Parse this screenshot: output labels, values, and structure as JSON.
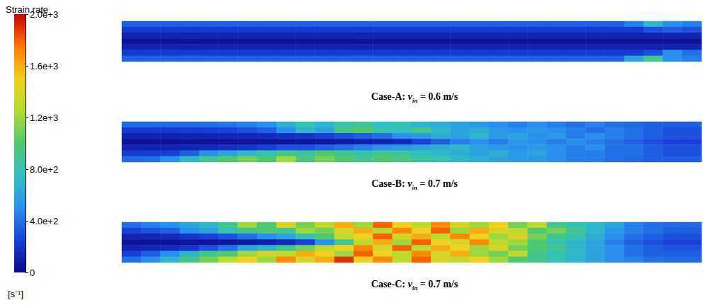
{
  "chart_data": {
    "type": "heatmap",
    "tick_labels": false,
    "colorbar": {
      "title": "Strain rate",
      "unit": "[s⁻¹]",
      "range": [
        0,
        2000
      ],
      "ticks": [
        0,
        {
          "value": 400,
          "label": "4.0e+2"
        },
        {
          "value": 800,
          "label": "8.0e+2"
        },
        {
          "value": 1200,
          "label": "1.2e+3"
        },
        {
          "value": 1600,
          "label": "1.6e+3"
        },
        {
          "value": 2000,
          "label": "2.0e+3"
        }
      ]
    },
    "panels": [
      {
        "caption": {
          "prefix": "Case-A:",
          "symbol": "v",
          "subscript": "in",
          "suffix": "= 0.6 m/s"
        },
        "cells": [
          [
            350,
            350,
            350,
            350,
            350,
            350,
            350,
            350,
            350,
            350,
            350,
            350,
            350,
            350,
            350,
            350,
            350,
            350,
            350,
            350,
            350,
            350,
            350,
            350,
            350,
            350,
            450,
            700,
            500,
            450
          ],
          [
            220,
            220,
            220,
            220,
            220,
            220,
            220,
            220,
            220,
            220,
            220,
            220,
            220,
            220,
            220,
            220,
            220,
            220,
            220,
            220,
            220,
            220,
            220,
            220,
            220,
            220,
            220,
            300,
            350,
            300
          ],
          [
            120,
            120,
            120,
            120,
            120,
            120,
            120,
            120,
            120,
            120,
            120,
            120,
            120,
            120,
            120,
            120,
            120,
            120,
            120,
            120,
            120,
            120,
            120,
            120,
            120,
            120,
            120,
            120,
            120,
            120
          ],
          [
            40,
            40,
            40,
            40,
            40,
            40,
            40,
            40,
            40,
            40,
            40,
            40,
            40,
            40,
            40,
            40,
            40,
            40,
            40,
            40,
            40,
            40,
            40,
            40,
            40,
            40,
            40,
            40,
            40,
            40
          ],
          [
            120,
            120,
            120,
            120,
            120,
            120,
            120,
            120,
            120,
            120,
            120,
            120,
            120,
            120,
            120,
            120,
            120,
            120,
            120,
            120,
            120,
            120,
            120,
            120,
            120,
            120,
            120,
            120,
            120,
            120
          ],
          [
            220,
            220,
            220,
            220,
            220,
            220,
            220,
            220,
            220,
            220,
            220,
            220,
            220,
            220,
            220,
            220,
            220,
            220,
            220,
            220,
            220,
            220,
            220,
            220,
            220,
            220,
            220,
            300,
            500,
            400
          ],
          [
            350,
            350,
            350,
            350,
            350,
            350,
            350,
            350,
            350,
            350,
            350,
            350,
            350,
            350,
            350,
            350,
            350,
            350,
            350,
            350,
            350,
            350,
            350,
            350,
            350,
            350,
            600,
            900,
            500,
            450
          ]
        ]
      },
      {
        "caption": {
          "prefix": "Case-B:",
          "symbol": "v",
          "subscript": "in",
          "suffix": "= 0.7 m/s"
        },
        "cells": [
          [
            380,
            380,
            380,
            380,
            400,
            420,
            450,
            500,
            650,
            800,
            700,
            850,
            900,
            750,
            800,
            700,
            650,
            600,
            550,
            500,
            450,
            500,
            450,
            400,
            450,
            400,
            380,
            350,
            350,
            350
          ],
          [
            220,
            220,
            220,
            230,
            250,
            260,
            300,
            350,
            500,
            700,
            600,
            900,
            1000,
            800,
            750,
            900,
            700,
            600,
            650,
            550,
            500,
            550,
            500,
            450,
            400,
            450,
            400,
            350,
            300,
            300
          ],
          [
            120,
            120,
            120,
            120,
            120,
            130,
            130,
            150,
            180,
            200,
            250,
            300,
            350,
            400,
            500,
            550,
            650,
            600,
            700,
            550,
            600,
            500,
            550,
            450,
            500,
            450,
            400,
            350,
            300,
            300
          ],
          [
            40,
            40,
            40,
            40,
            40,
            40,
            50,
            50,
            60,
            60,
            70,
            80,
            100,
            120,
            150,
            250,
            350,
            450,
            500,
            450,
            550,
            500,
            450,
            500,
            450,
            400,
            350,
            300,
            250,
            250
          ],
          [
            120,
            120,
            120,
            130,
            150,
            180,
            200,
            250,
            300,
            300,
            350,
            400,
            450,
            500,
            550,
            600,
            650,
            700,
            600,
            550,
            500,
            550,
            500,
            450,
            500,
            400,
            400,
            350,
            300,
            300
          ],
          [
            220,
            230,
            250,
            350,
            500,
            600,
            700,
            800,
            900,
            850,
            1000,
            900,
            800,
            900,
            850,
            750,
            700,
            650,
            600,
            650,
            550,
            600,
            500,
            450,
            450,
            400,
            400,
            350,
            300,
            300
          ],
          [
            380,
            400,
            500,
            700,
            900,
            1000,
            1100,
            1000,
            1200,
            950,
            1100,
            1000,
            900,
            1000,
            950,
            850,
            800,
            700,
            650,
            600,
            550,
            550,
            500,
            450,
            450,
            400,
            380,
            350,
            350,
            350
          ]
        ]
      },
      {
        "caption": {
          "prefix": "Case-C:",
          "symbol": "v",
          "subscript": "in",
          "suffix": "= 0.7 m/s"
        },
        "cells": [
          [
            400,
            450,
            500,
            600,
            700,
            900,
            1200,
            1000,
            1400,
            1100,
            1300,
            1600,
            1200,
            1800,
            1500,
            1300,
            1700,
            1400,
            1200,
            1500,
            1100,
            1300,
            900,
            800,
            700,
            600,
            450,
            400,
            380,
            380
          ],
          [
            250,
            300,
            350,
            500,
            600,
            800,
            900,
            1000,
            900,
            1200,
            1100,
            1400,
            1600,
            1300,
            1700,
            1500,
            1800,
            1200,
            1600,
            1400,
            1300,
            1000,
            1100,
            900,
            700,
            550,
            450,
            400,
            350,
            350
          ],
          [
            120,
            130,
            150,
            200,
            250,
            300,
            400,
            500,
            600,
            800,
            1000,
            1300,
            1500,
            1800,
            1400,
            1600,
            1300,
            1700,
            1500,
            1200,
            1400,
            1100,
            900,
            800,
            650,
            500,
            400,
            350,
            300,
            300
          ],
          [
            40,
            40,
            40,
            50,
            50,
            60,
            80,
            100,
            150,
            250,
            500,
            900,
            1300,
            1600,
            1200,
            1800,
            1500,
            1400,
            1700,
            1300,
            1200,
            1000,
            800,
            700,
            600,
            450,
            350,
            300,
            250,
            250
          ],
          [
            120,
            130,
            150,
            200,
            300,
            400,
            600,
            700,
            900,
            1100,
            1300,
            1500,
            1700,
            1400,
            1800,
            1300,
            1600,
            1500,
            1200,
            1400,
            1100,
            1000,
            900,
            700,
            600,
            500,
            400,
            350,
            300,
            300
          ],
          [
            250,
            350,
            500,
            700,
            900,
            1000,
            1200,
            1400,
            1300,
            1600,
            1500,
            1200,
            1800,
            1500,
            1300,
            1700,
            1400,
            1600,
            1200,
            1100,
            1300,
            900,
            800,
            700,
            600,
            500,
            400,
            350,
            350,
            350
          ],
          [
            400,
            500,
            700,
            900,
            1100,
            1300,
            1500,
            1200,
            1700,
            1400,
            1600,
            1900,
            1500,
            1700,
            1300,
            1800,
            1400,
            1300,
            1500,
            1200,
            1000,
            900,
            800,
            700,
            600,
            500,
            450,
            400,
            380,
            380
          ]
        ]
      }
    ]
  }
}
